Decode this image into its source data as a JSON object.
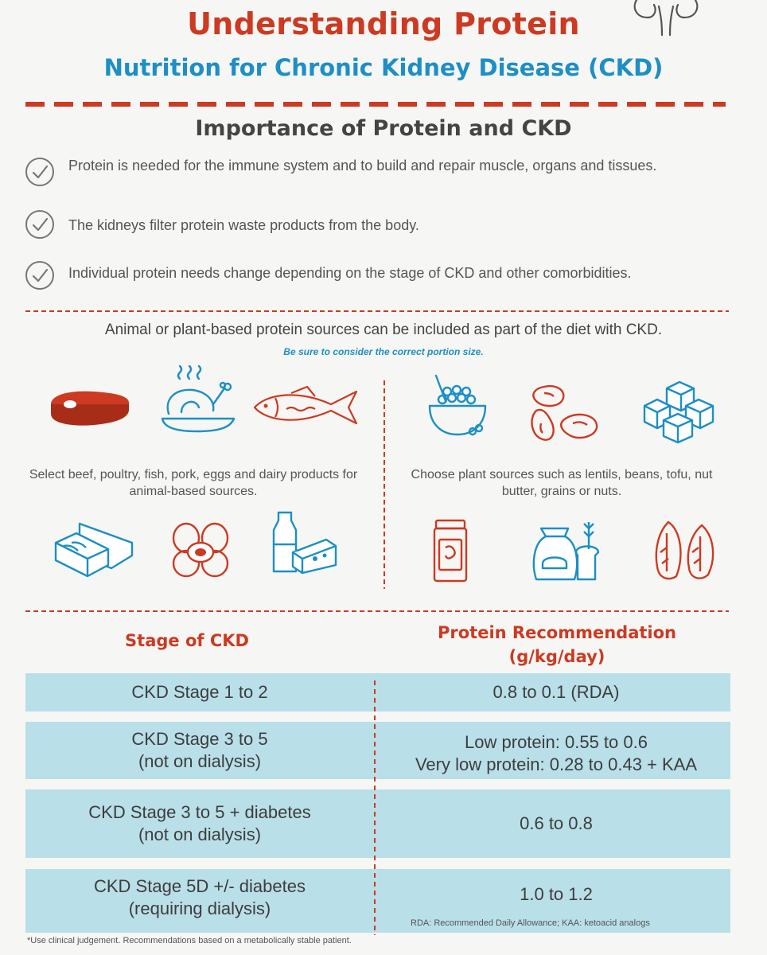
{
  "header": {
    "title": "Understanding Protein",
    "subtitle": "Nutrition for Chronic Kidney Disease (CKD)"
  },
  "importance": {
    "heading": "Importance of Protein and CKD",
    "bullets": [
      "Protein is needed for the immune system and to build and repair muscle, organs and tissues.",
      "The kidneys filter protein waste products from the body.",
      "Individual protein needs change depending on the stage of CKD and other comorbidities."
    ]
  },
  "sources": {
    "intro": "Animal or plant-based protein sources can be included as part of the diet with CKD.",
    "portion_note": "Be sure to consider the correct portion size.",
    "animal_caption": "Select beef, poultry, fish, pork, eggs and dairy products for animal-based sources.",
    "plant_caption": "Choose plant sources such as lentils, beans, tofu, nut butter, grains or nuts.",
    "icons": [
      "steak-icon",
      "roast-chicken-icon",
      "fish-icon",
      "pork-icon",
      "eggs-icon",
      "dairy-icon",
      "lentil-pot-icon",
      "beans-icon",
      "tofu-icon",
      "nut-butter-icon",
      "grains-icon",
      "nuts-icon"
    ]
  },
  "table": {
    "col1_header": "Stage of CKD",
    "col2_header": "Protein Recommendation (g/kg/day)",
    "rows": [
      {
        "stage": "CKD Stage 1 to 2",
        "stage_note": "",
        "rec": "0.8 to 0.1 (RDA)",
        "rec_line2": ""
      },
      {
        "stage": "CKD Stage 3 to 5",
        "stage_note": "(not on dialysis)",
        "rec": "Low protein: 0.55 to 0.6",
        "rec_line2": "Very low protein: 0.28 to 0.43 + KAA"
      },
      {
        "stage": "CKD Stage 3 to 5 + diabetes",
        "stage_note": "(not on dialysis)",
        "rec": "0.6 to 0.8",
        "rec_line2": ""
      },
      {
        "stage": "CKD Stage 5D +/- diabetes",
        "stage_note": "(requiring dialysis)",
        "rec": "1.0 to 1.2",
        "rec_line2": ""
      }
    ],
    "abbreviations": "RDA: Recommended Daily Allowance; KAA: ketoacid analogs",
    "footnote": "*Use clinical judgement. Recommendations based on a metabolically stable patient."
  },
  "colors": {
    "accent_red": "#cc3a22",
    "accent_blue": "#1d8fc4",
    "row_fill": "#b9dfe8"
  }
}
